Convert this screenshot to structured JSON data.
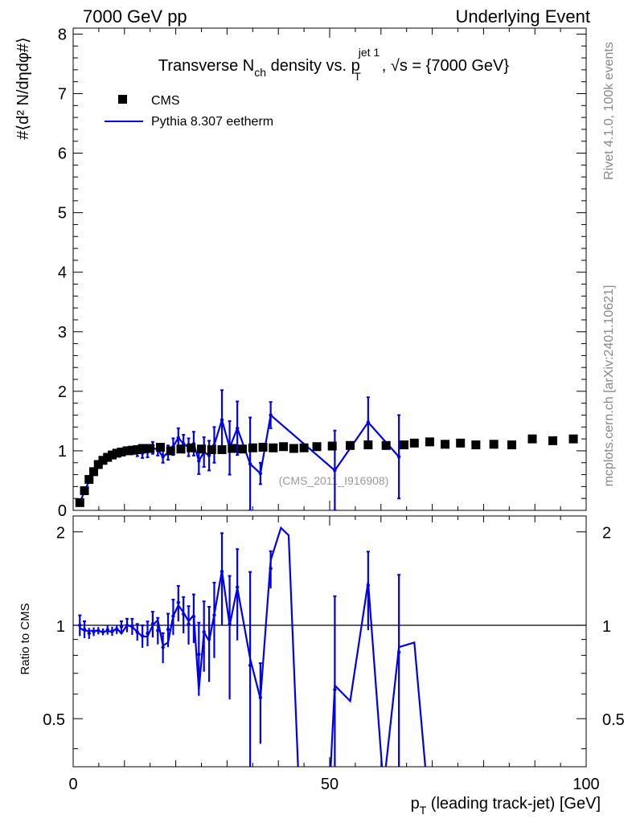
{
  "header": {
    "left": "7000 GeV pp",
    "right": "Underlying Event"
  },
  "side_labels": {
    "rivet": "Rivet 4.1.0,  100k events",
    "mcplots": "mcplots.cern.ch [arXiv:2401.10621]"
  },
  "colors": {
    "mc": "#0000ee",
    "data": "#000000",
    "analysis_id": "#999999"
  },
  "chart_data": [
    {
      "type": "scatter",
      "panel": "main",
      "title": {
        "part1": "Transverse N",
        "sub1": "ch",
        "part2": " density vs. p",
        "sup2": "jet 1",
        "sub2": "T",
        "part3": ", √s = {7000 GeV}"
      },
      "ylabel": "#⟨d² N/dηdφ#⟩",
      "xlim": [
        0,
        100
      ],
      "ylim": [
        0,
        8.1
      ],
      "y_ticks": [
        0,
        1,
        2,
        3,
        4,
        5,
        6,
        7,
        8
      ],
      "analysis_id": "(CMS_2011_I916908)",
      "legend": [
        {
          "label": "CMS",
          "style": "marker"
        },
        {
          "label": "Pythia 8.307 eetherm",
          "style": "line"
        }
      ],
      "series": [
        {
          "name": "CMS",
          "x": [
            1.3,
            2.2,
            3.1,
            4.0,
            4.9,
            5.8,
            6.7,
            7.6,
            8.5,
            9.4,
            10.5,
            11.5,
            12.5,
            13.5,
            15.0,
            17.0,
            19.0,
            21.0,
            23.0,
            25.0,
            27.0,
            29.0,
            31.0,
            33.0,
            35.0,
            37.0,
            39.0,
            41.0,
            43.0,
            45.0,
            47.5,
            50.5,
            54.0,
            57.5,
            61.0,
            64.5,
            66.5,
            69.5,
            72.5,
            75.5,
            78.5,
            82.0,
            85.5,
            89.5,
            93.5,
            97.5
          ],
          "y": [
            0.13,
            0.33,
            0.52,
            0.65,
            0.77,
            0.84,
            0.89,
            0.93,
            0.96,
            0.98,
            1.0,
            1.01,
            1.02,
            1.04,
            1.04,
            1.06,
            1.0,
            1.03,
            1.05,
            1.03,
            1.02,
            1.02,
            1.04,
            1.03,
            1.05,
            1.06,
            1.05,
            1.07,
            1.04,
            1.05,
            1.07,
            1.08,
            1.09,
            1.1,
            1.09,
            1.1,
            1.13,
            1.15,
            1.11,
            1.13,
            1.1,
            1.11,
            1.1,
            1.2,
            1.17,
            1.2
          ]
        },
        {
          "name": "Pythia 8.307 eetherm",
          "x": [
            1.3,
            2.2,
            3.1,
            4.0,
            4.9,
            5.8,
            6.7,
            7.6,
            8.5,
            9.4,
            10.5,
            11.5,
            12.5,
            13.5,
            14.5,
            15.5,
            16.5,
            17.5,
            18.5,
            19.5,
            20.5,
            21.5,
            22.5,
            23.5,
            24.5,
            25.5,
            26.5,
            27.5,
            29.0,
            30.5,
            32.0,
            34.5,
            36.5,
            38.5,
            51.0,
            57.5,
            63.5
          ],
          "y": [
            0.13,
            0.32,
            0.49,
            0.62,
            0.74,
            0.8,
            0.86,
            0.89,
            0.93,
            0.97,
            1.0,
            1.0,
            0.97,
            0.96,
            0.98,
            1.05,
            1.02,
            0.9,
            0.97,
            1.07,
            1.22,
            1.12,
            1.06,
            1.12,
            0.83,
            0.98,
            0.92,
            1.1,
            1.52,
            1.05,
            1.38,
            0.78,
            0.62,
            1.6,
            0.67,
            1.48,
            0.9
          ],
          "yerr": [
            0.01,
            0.02,
            0.02,
            0.02,
            0.02,
            0.02,
            0.03,
            0.03,
            0.03,
            0.04,
            0.05,
            0.06,
            0.06,
            0.08,
            0.09,
            0.1,
            0.1,
            0.1,
            0.12,
            0.14,
            0.16,
            0.15,
            0.15,
            0.2,
            0.22,
            0.25,
            0.25,
            0.3,
            0.5,
            0.45,
            0.45,
            0.78,
            0.18,
            0.22,
            0.67,
            0.42,
            0.7
          ]
        }
      ]
    },
    {
      "type": "line",
      "panel": "ratio",
      "ylabel": "Ratio to CMS",
      "xlabel": "p_T (leading track-jet) [GeV]",
      "xlabel_main": "p",
      "xlabel_sub": "T",
      "xlabel_rest": " (leading track-jet) [GeV]",
      "xlim": [
        0,
        100
      ],
      "ylim": [
        0.35,
        2.25
      ],
      "x_ticks": [
        0,
        50,
        100
      ],
      "y_ticks": [
        0.5,
        1,
        2
      ],
      "y_tick_labels": [
        "0.5",
        "1",
        "2"
      ],
      "reference": 1.0,
      "series": [
        {
          "name": "Pythia 8.307 eetherm / CMS",
          "x": [
            1.3,
            2.2,
            3.1,
            4.0,
            4.9,
            5.8,
            6.7,
            7.6,
            8.5,
            9.4,
            10.5,
            11.5,
            12.5,
            13.5,
            14.5,
            15.5,
            16.5,
            17.5,
            18.5,
            19.5,
            20.5,
            21.5,
            22.5,
            23.5,
            24.5,
            25.5,
            26.5,
            27.5,
            29.0,
            30.5,
            32.0,
            34.5,
            36.5,
            38.5,
            40.5,
            42.0,
            44.0,
            50.0,
            51.0,
            54.0,
            57.5,
            60.5,
            63.5,
            66.5,
            69.0
          ],
          "y": [
            0.98,
            0.96,
            0.96,
            0.96,
            0.96,
            0.95,
            0.96,
            0.95,
            0.98,
            0.94,
            1.0,
            0.99,
            0.95,
            0.92,
            0.92,
            1.0,
            1.04,
            0.86,
            0.88,
            1.07,
            1.16,
            1.1,
            1.03,
            1.08,
            0.62,
            0.95,
            0.89,
            1.08,
            1.5,
            1.0,
            1.32,
            0.78,
            0.58,
            1.62,
            2.06,
            1.95,
            0.3,
            0.3,
            0.64,
            0.57,
            1.38,
            0.3,
            0.85,
            0.88,
            0.3
          ]
        }
      ]
    }
  ]
}
